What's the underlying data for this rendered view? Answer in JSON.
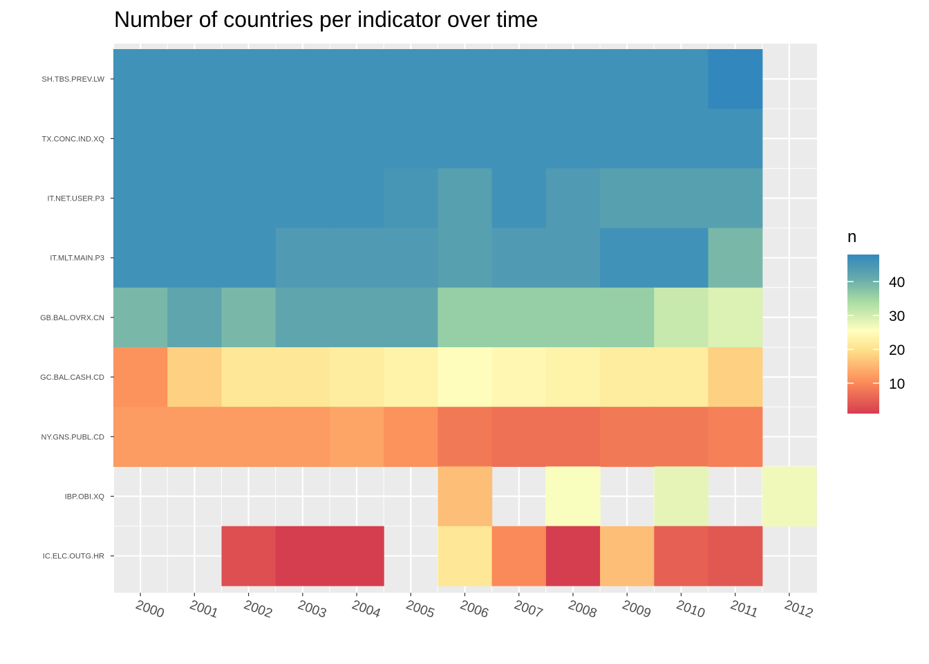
{
  "chart_data": {
    "type": "heatmap",
    "title": "Number of countries per indicator over time",
    "xlabel": "",
    "ylabel": "",
    "x": [
      "2000",
      "2001",
      "2002",
      "2003",
      "2004",
      "2005",
      "2006",
      "2007",
      "2008",
      "2009",
      "2010",
      "2011",
      "2012"
    ],
    "y": [
      "SH.TBS.PREV.LW",
      "TX.CONC.IND.XQ",
      "IT.NET.USER.P3",
      "IT.MLT.MAIN.P3",
      "GB.BAL.OVRX.CN",
      "GC.BAL.CASH.CD",
      "NY.GNS.PUBL.CD",
      "IBP.OBI.XQ",
      "IC.ELC.OUTG.HR"
    ],
    "values": [
      [
        46,
        46,
        46,
        46,
        46,
        46,
        46,
        46,
        46,
        46,
        46,
        48,
        null
      ],
      [
        46,
        46,
        46,
        46,
        46,
        46,
        46,
        46,
        46,
        46,
        46,
        46,
        null
      ],
      [
        46,
        46,
        46,
        46,
        46,
        45,
        43,
        46,
        44,
        43,
        43,
        43,
        null
      ],
      [
        46,
        46,
        46,
        44,
        44,
        44,
        43,
        44,
        44,
        46,
        46,
        39,
        null
      ],
      [
        39,
        42,
        39,
        42,
        42,
        42,
        36,
        36,
        36,
        36,
        31,
        29,
        null
      ],
      [
        11,
        18,
        21,
        21,
        22,
        23,
        25,
        24,
        23,
        22,
        22,
        18,
        null
      ],
      [
        12,
        12,
        12,
        12,
        13,
        11,
        8,
        7,
        7,
        8,
        8,
        9,
        null
      ],
      [
        null,
        null,
        null,
        null,
        null,
        null,
        16,
        null,
        26,
        null,
        28,
        null,
        27
      ],
      [
        null,
        null,
        3,
        1,
        1,
        null,
        21,
        10,
        1,
        16,
        5,
        4,
        null
      ]
    ],
    "color_scale": {
      "name": "n",
      "min": 1,
      "max": 48,
      "ticks": [
        10,
        20,
        30,
        40
      ],
      "palette": "Spectral"
    },
    "legend_position": "right",
    "grid": true
  }
}
